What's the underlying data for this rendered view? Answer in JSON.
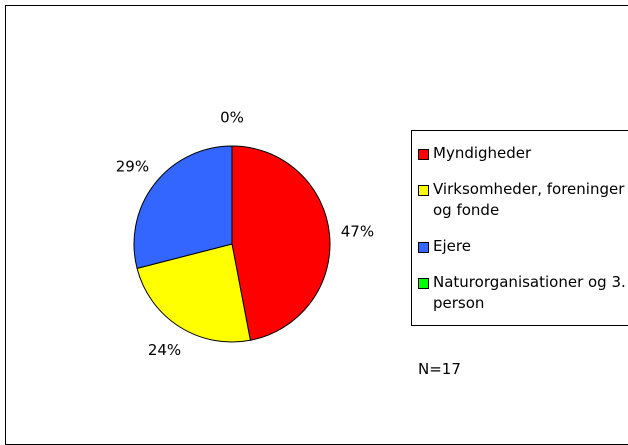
{
  "chart_data": {
    "type": "pie",
    "series": [
      {
        "name": "Myndigheder",
        "color": "#ff0000",
        "values": [
          47
        ]
      },
      {
        "name": "Virksomheder, foreninger og fonde",
        "color": "#ffff00",
        "values": [
          24
        ]
      },
      {
        "name": "Ejere",
        "color": "#3366ff",
        "values": [
          29
        ]
      },
      {
        "name": "Naturorganisationer og 3. person",
        "color": "#00ff00",
        "values": [
          0
        ]
      }
    ],
    "value_labels": [
      "47%",
      "24%",
      "29%",
      "0%"
    ],
    "annotation": "N=17",
    "legend": "right"
  }
}
